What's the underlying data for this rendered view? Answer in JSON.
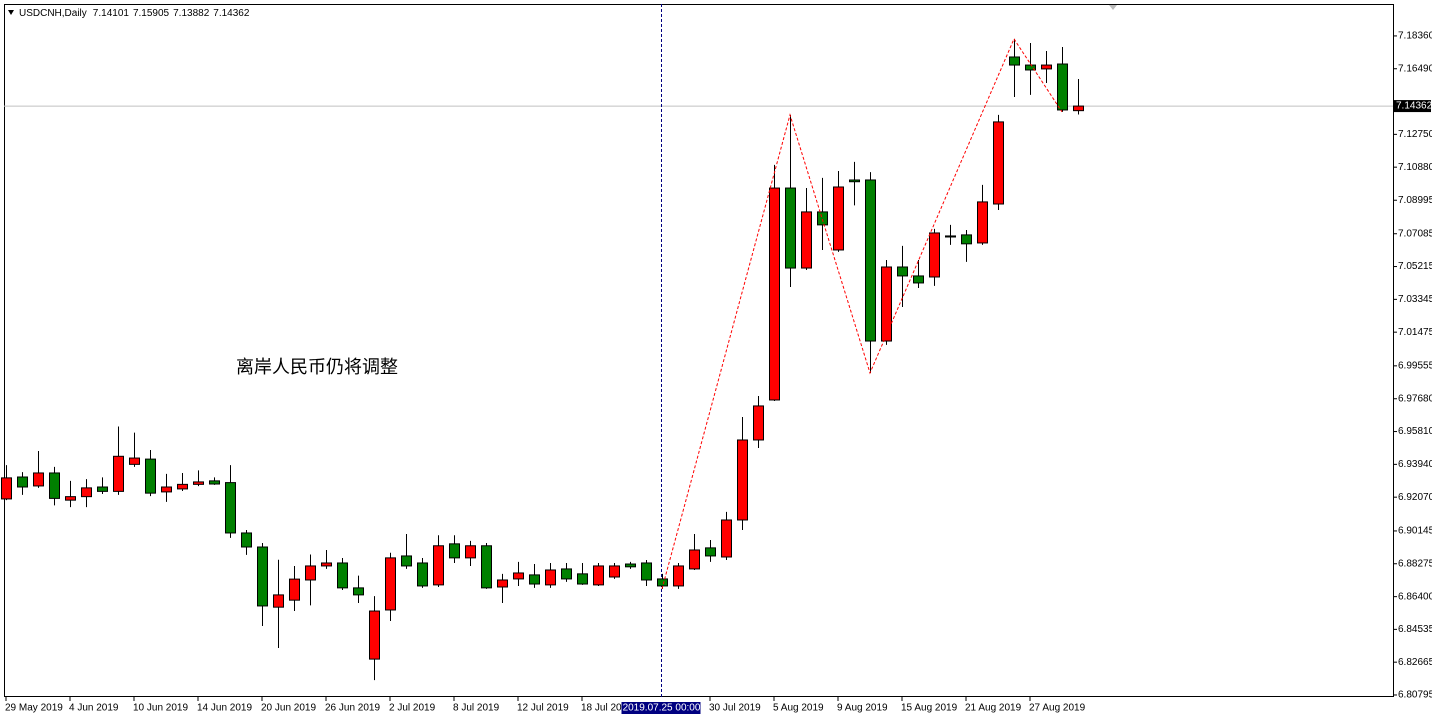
{
  "chart_data": {
    "type": "candlestick",
    "title": "USDCNH,Daily",
    "annotation": "离岸人民币仍将调整",
    "up_color": "#ff0000",
    "down_color": "#008000",
    "categories": [
      "29 May 2019",
      null,
      null,
      null,
      "4 Jun 2019",
      null,
      null,
      null,
      "10 Jun 2019",
      null,
      null,
      null,
      "14 Jun 2019",
      null,
      null,
      null,
      "20 Jun 2019",
      null,
      null,
      null,
      "26 Jun 2019",
      null,
      null,
      null,
      "2 Jul 2019",
      null,
      null,
      null,
      "8 Jul 2019",
      null,
      null,
      null,
      "12 Jul 2019",
      null,
      null,
      null,
      "18 Jul 2019",
      null,
      null,
      null,
      null,
      null,
      null,
      null,
      "30 Jul 2019",
      null,
      null,
      null,
      "5 Aug 2019",
      null,
      null,
      null,
      "9 Aug 2019",
      null,
      null,
      null,
      "15 Aug 2019",
      null,
      null,
      null,
      "21 Aug 2019",
      null,
      null,
      null,
      "27 Aug 2019",
      null,
      null,
      null
    ],
    "open": [
      6.9197,
      6.9322,
      6.9271,
      6.9345,
      6.919,
      6.921,
      6.9265,
      6.924,
      6.9394,
      6.9424,
      6.9237,
      6.9254,
      6.928,
      6.93,
      6.929,
      6.9003,
      6.8923,
      6.858,
      6.862,
      6.8735,
      6.8815,
      6.8832,
      6.869,
      6.8284,
      6.8564,
      6.8872,
      6.8832,
      6.8707,
      6.8941,
      6.8861,
      6.893,
      6.8695,
      6.8741,
      6.8764,
      6.8707,
      6.8798,
      6.877,
      6.8707,
      6.8752,
      6.8826,
      6.8832,
      6.8741,
      6.8701,
      6.8798,
      6.8918,
      6.8866,
      6.9077,
      6.9533,
      6.9761,
      7.0969,
      7.0513,
      7.0833,
      7.0616,
      7.1015,
      7.1015,
      7.0097,
      7.0519,
      7.0468,
      7.0462,
      7.0696,
      7.0702,
      7.0656,
      7.0878,
      7.1716,
      7.167,
      7.1648,
      7.1676,
      7.14101
    ],
    "high": [
      6.939,
      6.935,
      6.947,
      6.938,
      6.93,
      6.931,
      6.932,
      6.961,
      6.9575,
      6.9476,
      6.934,
      6.9345,
      6.936,
      6.932,
      6.939,
      6.902,
      6.8946,
      6.885,
      6.8815,
      6.888,
      6.8906,
      6.886,
      6.876,
      6.8643,
      6.889,
      6.8997,
      6.886,
      6.899,
      6.899,
      6.8958,
      6.8946,
      6.877,
      6.8838,
      6.8826,
      6.8832,
      6.8832,
      6.8832,
      6.8832,
      6.8832,
      6.8838,
      6.8849,
      6.877,
      6.8832,
      6.8997,
      6.8963,
      6.9123,
      6.9664,
      6.9784,
      7.1101,
      7.1386,
      7.0969,
      7.1027,
      7.1066,
      7.1118,
      7.106,
      7.0559,
      7.0639,
      7.0559,
      7.0736,
      7.0759,
      7.073,
      7.0987,
      7.1386,
      7.1819,
      7.1796,
      7.175,
      7.1773,
      7.15905
    ],
    "low": [
      6.919,
      6.922,
      6.926,
      6.916,
      6.915,
      6.915,
      6.9225,
      6.922,
      6.938,
      6.9213,
      6.918,
      6.9242,
      6.927,
      6.9277,
      6.8975,
      6.8878,
      6.8473,
      6.8347,
      6.8558,
      6.859,
      6.8798,
      6.8678,
      6.8604,
      6.8164,
      6.8501,
      6.8798,
      6.869,
      6.8695,
      6.8832,
      6.8815,
      6.8684,
      6.8604,
      6.8701,
      6.869,
      6.869,
      6.8724,
      6.8707,
      6.8701,
      6.8741,
      6.8798,
      6.8701,
      6.8684,
      6.8684,
      6.8792,
      6.8838,
      6.8849,
      6.902,
      6.9487,
      6.9755,
      7.0405,
      7.0502,
      7.0616,
      7.0605,
      7.087,
      6.9915,
      7.0075,
      7.0291,
      7.0399,
      7.0411,
      7.0645,
      7.0548,
      7.0645,
      7.0844,
      7.1488,
      7.15,
      7.1568,
      7.1403,
      7.13882
    ],
    "close": [
      6.9317,
      6.9265,
      6.9345,
      6.92,
      6.921,
      6.926,
      6.924,
      6.944,
      6.943,
      6.923,
      6.9265,
      6.928,
      6.9294,
      6.9282,
      6.9003,
      6.8923,
      6.8587,
      6.865,
      6.874,
      6.8815,
      6.8832,
      6.869,
      6.865,
      6.8558,
      6.8861,
      6.8815,
      6.8701,
      6.893,
      6.8861,
      6.893,
      6.869,
      6.8735,
      6.8775,
      6.8712,
      6.8792,
      6.8741,
      6.8712,
      6.8815,
      6.8815,
      6.881,
      6.8735,
      6.8701,
      6.8815,
      6.8906,
      6.8872,
      6.9077,
      6.9533,
      6.9727,
      7.0969,
      7.0513,
      7.0833,
      7.0759,
      7.0975,
      7.1005,
      7.0097,
      7.0519,
      7.0468,
      7.0428,
      7.0713,
      7.069,
      7.0651,
      7.089,
      7.1346,
      7.167,
      7.1642,
      7.167,
      7.1414,
      7.14362
    ],
    "zigzag": {
      "color": "#ff0000",
      "points": [
        {
          "index": 41,
          "value": 6.8684
        },
        {
          "index": 49,
          "value": 7.1386
        },
        {
          "index": 54,
          "value": 6.9915
        },
        {
          "index": 63,
          "value": 7.1819
        },
        {
          "index": 66,
          "value": 7.1403
        }
      ]
    },
    "crosshair": {
      "index": 41,
      "label": "2019.07.25 00:00"
    },
    "ylim": [
      6.8068,
      7.2018
    ],
    "yticks": [
      {
        "value": 7.1836,
        "label": "7.18360"
      },
      {
        "value": 7.1649,
        "label": "7.16490"
      },
      {
        "value": 7.1275,
        "label": "7.12750"
      },
      {
        "value": 7.1088,
        "label": "7.10880"
      },
      {
        "value": 7.08995,
        "label": "7.08995"
      },
      {
        "value": 7.07085,
        "label": "7.07085"
      },
      {
        "value": 7.05215,
        "label": "7.05215"
      },
      {
        "value": 7.03345,
        "label": "7.03345"
      },
      {
        "value": 7.01475,
        "label": "7.01475"
      },
      {
        "value": 6.99555,
        "label": "6.99555"
      },
      {
        "value": 6.9768,
        "label": "6.97680"
      },
      {
        "value": 6.9581,
        "label": "6.95810"
      },
      {
        "value": 6.9394,
        "label": "6.93940"
      },
      {
        "value": 6.9207,
        "label": "6.92070"
      },
      {
        "value": 6.90145,
        "label": "6.90145"
      },
      {
        "value": 6.88275,
        "label": "6.88275"
      },
      {
        "value": 6.864,
        "label": "6.86400"
      },
      {
        "value": 6.84535,
        "label": "6.84535"
      },
      {
        "value": 6.82665,
        "label": "6.82665"
      },
      {
        "value": 6.80795,
        "label": "6.80795"
      }
    ]
  }
}
